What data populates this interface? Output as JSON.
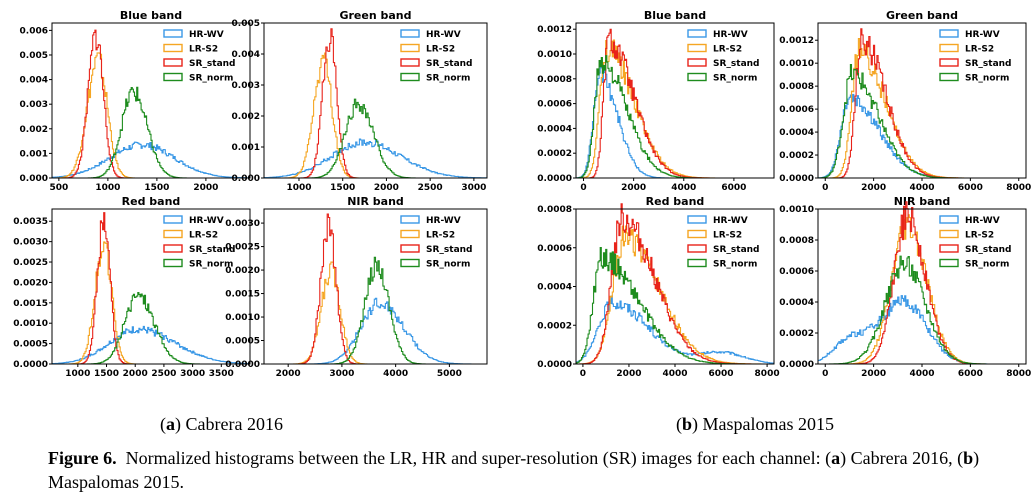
{
  "colors": {
    "HR-WV": "#3a98e6",
    "LR-S2": "#f5a623",
    "SR_stand": "#e8231a",
    "SR_norm": "#1e8c1e"
  },
  "legend": [
    "HR-WV",
    "LR-S2",
    "SR_stand",
    "SR_norm"
  ],
  "captions": {
    "sub_a_label": "a",
    "sub_a_text": "Cabrera 2016",
    "sub_b_label": "b",
    "sub_b_text": "Maspalomas 2015",
    "figure_label": "Figure 6.",
    "figure_text_1": "Normalized histograms between the LR, HR and super-resolution (SR) images for each channel: (",
    "figure_a": "a",
    "figure_text_2": ") Cabrera 2016, (",
    "figure_b": "b",
    "figure_text_3": ") Maspalomas 2015."
  },
  "chart_data": [
    {
      "type": "area",
      "panel": "a",
      "title": "Blue band",
      "xlim": [
        430,
        2450
      ],
      "ylim": [
        0,
        0.0063
      ],
      "xticks": [
        500,
        1000,
        1500,
        2000
      ],
      "yticks": [
        0,
        0.001,
        0.002,
        0.003,
        0.004,
        0.005,
        0.006
      ],
      "ytick_labels": [
        "0.000",
        "0.001",
        "0.002",
        "0.003",
        "0.004",
        "0.005",
        "0.006"
      ],
      "series": [
        {
          "name": "HR-WV",
          "peaks": [
            [
              1350,
              0.00135,
              330,
              330
            ]
          ]
        },
        {
          "name": "LR-S2",
          "peaks": [
            [
              900,
              0.0048,
              110,
              95
            ]
          ]
        },
        {
          "name": "SR_stand",
          "peaks": [
            [
              880,
              0.0058,
              80,
              75
            ]
          ]
        },
        {
          "name": "SR_norm",
          "peaks": [
            [
              1260,
              0.0035,
              120,
              140
            ]
          ]
        }
      ]
    },
    {
      "type": "area",
      "panel": "a",
      "title": "Green band",
      "xlim": [
        600,
        3150
      ],
      "ylim": [
        0,
        0.005
      ],
      "xticks": [
        1000,
        1500,
        2000,
        2500,
        3000
      ],
      "yticks": [
        0,
        0.001,
        0.002,
        0.003,
        0.004,
        0.005
      ],
      "ytick_labels": [
        "0.000",
        "0.001",
        "0.002",
        "0.003",
        "0.004",
        "0.005"
      ],
      "series": [
        {
          "name": "HR-WV",
          "peaks": [
            [
              1750,
              0.00115,
              380,
              420
            ]
          ]
        },
        {
          "name": "LR-S2",
          "peaks": [
            [
              1280,
              0.0038,
              110,
              100
            ]
          ]
        },
        {
          "name": "SR_stand",
          "peaks": [
            [
              1350,
              0.0046,
              80,
              80
            ]
          ]
        },
        {
          "name": "SR_norm",
          "peaks": [
            [
              1680,
              0.0024,
              150,
              170
            ]
          ]
        }
      ]
    },
    {
      "type": "area",
      "panel": "b",
      "title": "Blue band",
      "xlim": [
        -300,
        7600
      ],
      "ylim": [
        0,
        0.00125
      ],
      "xticks": [
        0,
        2000,
        4000,
        6000
      ],
      "yticks": [
        0,
        0.0002,
        0.0004,
        0.0006,
        0.0008,
        0.001,
        0.0012
      ],
      "ytick_labels": [
        "0.0000",
        "0.0002",
        "0.0004",
        "0.0006",
        "0.0008",
        "0.0010",
        "0.0012"
      ],
      "series": [
        {
          "name": "HR-WV",
          "peaks": [
            [
              650,
              0.00085,
              250,
              700
            ]
          ]
        },
        {
          "name": "LR-S2",
          "peaks": [
            [
              900,
              0.00105,
              250,
              1100
            ]
          ]
        },
        {
          "name": "SR_stand",
          "peaks": [
            [
              1000,
              0.0011,
              200,
              1000
            ]
          ]
        },
        {
          "name": "SR_norm",
          "peaks": [
            [
              700,
              0.00095,
              250,
              1000
            ]
          ]
        }
      ]
    },
    {
      "type": "area",
      "panel": "b",
      "title": "Green band",
      "xlim": [
        -300,
        8300
      ],
      "ylim": [
        0,
        0.00135
      ],
      "xticks": [
        0,
        2000,
        4000,
        6000,
        8000
      ],
      "yticks": [
        0,
        0.0002,
        0.0004,
        0.0006,
        0.0008,
        0.001,
        0.0012
      ],
      "ytick_labels": [
        "0.0000",
        "0.0002",
        "0.0004",
        "0.0006",
        "0.0008",
        "0.0010",
        "0.0012"
      ],
      "series": [
        {
          "name": "HR-WV",
          "peaks": [
            [
              1000,
              0.0007,
              350,
              1200
            ]
          ]
        },
        {
          "name": "LR-S2",
          "peaks": [
            [
              1400,
              0.0011,
              300,
              1100
            ]
          ]
        },
        {
          "name": "SR_stand",
          "peaks": [
            [
              1500,
              0.0012,
              250,
              1000
            ]
          ]
        },
        {
          "name": "SR_norm",
          "peaks": [
            [
              1100,
              0.0009,
              350,
              1100
            ]
          ]
        }
      ]
    },
    {
      "type": "area",
      "panel": "a",
      "title": "Red band",
      "xlim": [
        550,
        4000
      ],
      "ylim": [
        0,
        0.0038
      ],
      "xticks": [
        1000,
        1500,
        2000,
        2500,
        3000,
        3500
      ],
      "yticks": [
        0,
        0.0005,
        0.001,
        0.0015,
        0.002,
        0.0025,
        0.003,
        0.0035
      ],
      "ytick_labels": [
        "0.0000",
        "0.0005",
        "0.0010",
        "0.0015",
        "0.0020",
        "0.0025",
        "0.0030",
        "0.0035"
      ],
      "series": [
        {
          "name": "HR-WV",
          "peaks": [
            [
              2050,
              0.00085,
              500,
              650
            ]
          ]
        },
        {
          "name": "LR-S2",
          "peaks": [
            [
              1450,
              0.0029,
              150,
              140
            ]
          ]
        },
        {
          "name": "SR_stand",
          "peaks": [
            [
              1450,
              0.0035,
              110,
              110
            ]
          ]
        },
        {
          "name": "SR_norm",
          "peaks": [
            [
              2050,
              0.0017,
              230,
              280
            ]
          ]
        }
      ]
    },
    {
      "type": "area",
      "panel": "a",
      "title": "NIR band",
      "xlim": [
        1550,
        5700
      ],
      "ylim": [
        0,
        0.0033
      ],
      "xticks": [
        2000,
        3000,
        4000,
        5000
      ],
      "yticks": [
        0,
        0.0005,
        0.001,
        0.0015,
        0.002,
        0.0025,
        0.003
      ],
      "ytick_labels": [
        "0.0000",
        "0.0005",
        "0.0010",
        "0.0015",
        "0.0020",
        "0.0025",
        "0.0030"
      ],
      "series": [
        {
          "name": "HR-WV",
          "peaks": [
            [
              3700,
              0.0013,
              350,
              450
            ]
          ]
        },
        {
          "name": "LR-S2",
          "peaks": [
            [
              2800,
              0.002,
              180,
              170
            ]
          ]
        },
        {
          "name": "SR_stand",
          "peaks": [
            [
              2750,
              0.003,
              140,
              140
            ]
          ]
        },
        {
          "name": "SR_norm",
          "peaks": [
            [
              3650,
              0.0021,
              220,
              230
            ]
          ]
        }
      ]
    },
    {
      "type": "area",
      "panel": "b",
      "title": "Red band",
      "xlim": [
        -300,
        8300
      ],
      "ylim": [
        0,
        0.0008
      ],
      "xticks": [
        0,
        2000,
        4000,
        6000,
        8000
      ],
      "yticks": [
        0,
        0.0002,
        0.0004,
        0.0006,
        0.0008
      ],
      "ytick_labels": [
        "0.0000",
        "0.0002",
        "0.0004",
        "0.0006",
        "0.0008"
      ],
      "series": [
        {
          "name": "HR-WV",
          "peaks": [
            [
              1300,
              0.00032,
              600,
              1500
            ],
            [
              6000,
              6e-05,
              1000,
              1000
            ]
          ]
        },
        {
          "name": "LR-S2",
          "peaks": [
            [
              1800,
              0.00065,
              500,
              1500
            ]
          ]
        },
        {
          "name": "SR_stand",
          "peaks": [
            [
              1700,
              0.00075,
              450,
              1400
            ]
          ]
        },
        {
          "name": "SR_norm",
          "peaks": [
            [
              800,
              0.00055,
              350,
              1600
            ]
          ]
        }
      ]
    },
    {
      "type": "area",
      "panel": "b",
      "title": "NIR band",
      "xlim": [
        -300,
        8300
      ],
      "ylim": [
        0,
        0.001
      ],
      "xticks": [
        0,
        2000,
        4000,
        6000,
        8000
      ],
      "yticks": [
        0,
        0.0002,
        0.0004,
        0.0006,
        0.0008,
        0.001
      ],
      "ytick_labels": [
        "0.0000",
        "0.0002",
        "0.0004",
        "0.0006",
        "0.0008",
        "0.0010"
      ],
      "series": [
        {
          "name": "HR-WV",
          "peaks": [
            [
              3300,
              0.0004,
              1200,
              900
            ],
            [
              900,
              0.00012,
              600,
              600
            ]
          ]
        },
        {
          "name": "LR-S2",
          "peaks": [
            [
              3400,
              0.0009,
              650,
              800
            ]
          ]
        },
        {
          "name": "SR_stand",
          "peaks": [
            [
              3400,
              0.00095,
              550,
              750
            ]
          ]
        },
        {
          "name": "SR_norm",
          "peaks": [
            [
              3300,
              0.00065,
              800,
              850
            ]
          ]
        }
      ]
    }
  ]
}
